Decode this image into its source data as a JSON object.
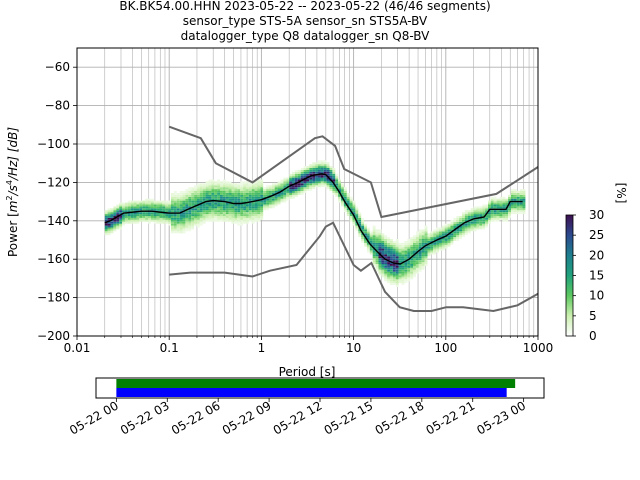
{
  "title_lines": [
    "BK.BK54.00.HHN   2023-05-22 -- 2023-05-22  (46/46 segments)",
    "sensor_type STS-5A sensor_sn STS5A-BV",
    "datalogger_type Q8 datalogger_sn Q8-BV"
  ],
  "chart_data": [
    {
      "type": "heatmap",
      "xlabel": "Period [s]",
      "ylabel_prefix": "Power [",
      "ylabel_unit_m": "m",
      "ylabel_unit_sup2": "2",
      "ylabel_unit_s": "/s",
      "ylabel_unit_sup4": "4",
      "ylabel_unit_rest": "/Hz] [dB]",
      "x_scale": "log",
      "xlim": [
        0.01,
        1000
      ],
      "ylim": [
        -200,
        -50
      ],
      "x_ticks": [
        0.01,
        0.1,
        1,
        10,
        100,
        1000
      ],
      "x_tick_labels": [
        "0.01",
        "0.1",
        "1",
        "10",
        "100",
        "1000"
      ],
      "y_ticks": [
        -200,
        -180,
        -160,
        -140,
        -120,
        -100,
        -80,
        -60
      ],
      "y_tick_labels": [
        "−200",
        "−180",
        "−160",
        "−140",
        "−120",
        "−100",
        "−80",
        "−60"
      ],
      "grid": true,
      "colorbar": {
        "label": "[%]",
        "range": [
          0,
          30
        ],
        "ticks": [
          0,
          5,
          10,
          15,
          20,
          25,
          30
        ],
        "tick_labels": [
          "0",
          "5",
          "10",
          "15",
          "20",
          "25",
          "30"
        ],
        "colormap": "pqlx",
        "stops": [
          "#ffffff",
          "#ccf0b0",
          "#5dc860",
          "#21a27c",
          "#1e7f8e",
          "#2c4a8e",
          "#3d1050"
        ]
      },
      "series": [
        {
          "kind": "model",
          "color": "#666666",
          "points": [
            [
              0.1,
              -91
            ],
            [
              0.22,
              -97
            ],
            [
              0.32,
              -110
            ],
            [
              0.8,
              -120
            ],
            [
              3.8,
              -97
            ],
            [
              4.6,
              -96
            ],
            [
              6.3,
              -101
            ],
            [
              7.9,
              -113
            ],
            [
              15.4,
              -120
            ],
            [
              20,
              -138
            ],
            [
              354,
              -126
            ],
            [
              1000,
              -112
            ]
          ]
        },
        {
          "kind": "model",
          "color": "#666666",
          "points": [
            [
              0.1,
              -168
            ],
            [
              0.17,
              -167
            ],
            [
              0.4,
              -167
            ],
            [
              0.8,
              -169
            ],
            [
              1.24,
              -166
            ],
            [
              2.4,
              -163
            ],
            [
              4.3,
              -148
            ],
            [
              5,
              -143
            ],
            [
              6,
              -141
            ],
            [
              10,
              -163
            ],
            [
              12,
              -166
            ],
            [
              15.6,
              -162
            ],
            [
              21.9,
              -177
            ],
            [
              31.6,
              -185
            ],
            [
              45,
              -187
            ],
            [
              70,
              -187
            ],
            [
              101,
              -185
            ],
            [
              154,
              -185
            ],
            [
              328,
              -187
            ],
            [
              600,
              -184
            ],
            [
              1000,
              -178
            ]
          ]
        },
        {
          "kind": "mean",
          "color": "#000000",
          "points": [
            [
              0.02,
              -141
            ],
            [
              0.023,
              -140
            ],
            [
              0.027,
              -138
            ],
            [
              0.032,
              -136
            ],
            [
              0.04,
              -135.5
            ],
            [
              0.05,
              -135
            ],
            [
              0.065,
              -135
            ],
            [
              0.08,
              -135.5
            ],
            [
              0.1,
              -136
            ],
            [
              0.13,
              -136
            ],
            [
              0.16,
              -134
            ],
            [
              0.2,
              -132
            ],
            [
              0.25,
              -130
            ],
            [
              0.3,
              -129.5
            ],
            [
              0.4,
              -130
            ],
            [
              0.5,
              -131
            ],
            [
              0.6,
              -131
            ],
            [
              0.7,
              -130.5
            ],
            [
              0.8,
              -130
            ],
            [
              1.0,
              -129
            ],
            [
              1.3,
              -127
            ],
            [
              1.6,
              -125
            ],
            [
              2.0,
              -122
            ],
            [
              2.5,
              -120
            ],
            [
              3.0,
              -118
            ],
            [
              3.5,
              -116.5
            ],
            [
              4.0,
              -116
            ],
            [
              4.5,
              -115.5
            ],
            [
              5.0,
              -116
            ],
            [
              6.0,
              -120
            ],
            [
              7.0,
              -125
            ],
            [
              8.0,
              -130
            ],
            [
              10,
              -137
            ],
            [
              12,
              -145
            ],
            [
              15,
              -152
            ],
            [
              18,
              -156
            ],
            [
              22,
              -160
            ],
            [
              27,
              -162
            ],
            [
              32,
              -162.5
            ],
            [
              40,
              -160
            ],
            [
              50,
              -156
            ],
            [
              60,
              -153
            ],
            [
              80,
              -150
            ],
            [
              100,
              -148
            ],
            [
              130,
              -144
            ],
            [
              160,
              -141
            ],
            [
              200,
              -139
            ],
            [
              260,
              -138
            ],
            [
              300,
              -134
            ],
            [
              360,
              -134
            ],
            [
              450,
              -134
            ],
            [
              500,
              -130
            ],
            [
              600,
              -130
            ],
            [
              680,
              -130
            ]
          ]
        }
      ]
    },
    {
      "type": "timeline",
      "x_tick_labels": [
        "05-22 00",
        "05-22 03",
        "05-22 06",
        "05-22 09",
        "05-22 12",
        "05-22 15",
        "05-22 18",
        "05-22 21",
        "05-23 00"
      ],
      "xlim_hours": [
        -1.2,
        25.2
      ],
      "bars": [
        {
          "name": "green",
          "color": "#008000",
          "start_hour": 0,
          "end_hour": 23.5
        },
        {
          "name": "blue",
          "color": "#0000ff",
          "start_hour": 0,
          "end_hour": 23.0
        }
      ]
    }
  ]
}
